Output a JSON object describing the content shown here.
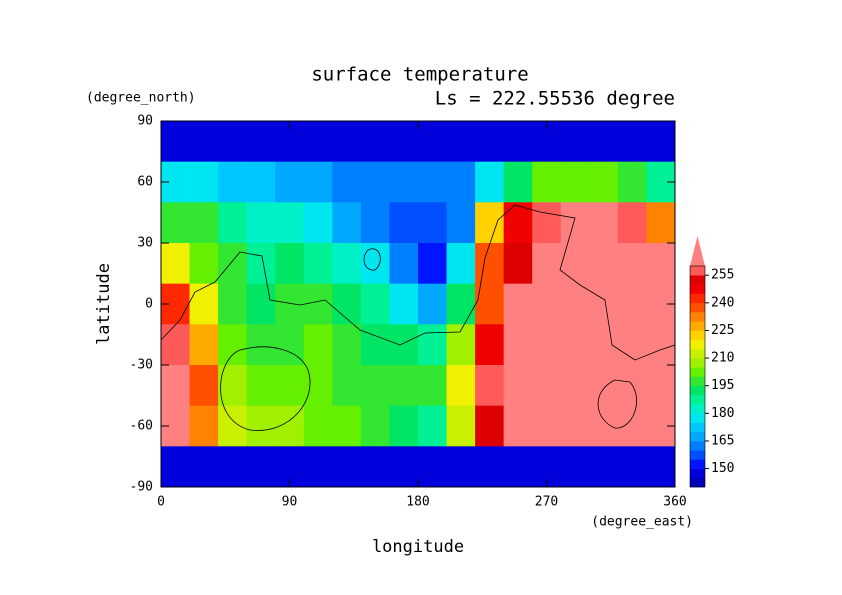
{
  "chart_data": {
    "type": "contour",
    "title": "surface temperature",
    "subtitle": "Ls = 222.55536 degree",
    "x_label": "longitude",
    "y_label": "latitude",
    "x_unit": "(degree_east)",
    "y_unit": "(degree_north)",
    "xlim": [
      0,
      360
    ],
    "ylim": [
      -90,
      90
    ],
    "xticks": [
      0,
      90,
      180,
      270,
      360
    ],
    "yticks": [
      -90,
      -60,
      -30,
      0,
      30,
      60,
      90
    ],
    "x": [
      10,
      30,
      50,
      70,
      90,
      110,
      130,
      150,
      170,
      190,
      210,
      230,
      250,
      270,
      290,
      310,
      330,
      350
    ],
    "y": [
      80,
      60,
      40,
      20,
      0,
      -20,
      -40,
      -60,
      -80
    ],
    "z": [
      [
        145,
        145,
        145,
        145,
        145,
        145,
        145,
        145,
        145,
        145,
        145,
        145,
        145,
        145,
        145,
        145,
        145,
        145
      ],
      [
        175,
        175,
        170,
        170,
        165,
        165,
        160,
        160,
        160,
        160,
        160,
        175,
        190,
        200,
        200,
        200,
        195,
        185
      ],
      [
        195,
        195,
        185,
        180,
        180,
        175,
        165,
        160,
        155,
        155,
        160,
        220,
        245,
        255,
        265,
        265,
        255,
        230
      ],
      [
        215,
        200,
        195,
        185,
        190,
        185,
        180,
        175,
        160,
        150,
        175,
        235,
        250,
        265,
        265,
        265,
        265,
        260
      ],
      [
        240,
        215,
        195,
        190,
        195,
        195,
        190,
        185,
        175,
        165,
        190,
        235,
        260,
        265,
        265,
        265,
        265,
        265
      ],
      [
        255,
        225,
        200,
        195,
        195,
        200,
        195,
        190,
        190,
        185,
        205,
        245,
        265,
        265,
        265,
        265,
        265,
        265
      ],
      [
        265,
        235,
        205,
        200,
        200,
        200,
        195,
        195,
        195,
        195,
        215,
        255,
        265,
        265,
        265,
        265,
        265,
        265
      ],
      [
        260,
        230,
        210,
        205,
        205,
        200,
        200,
        195,
        190,
        185,
        210,
        250,
        265,
        265,
        265,
        265,
        265,
        265
      ],
      [
        145,
        145,
        145,
        145,
        145,
        145,
        145,
        145,
        145,
        145,
        145,
        145,
        145,
        145,
        145,
        145,
        145,
        145
      ]
    ],
    "levels": [
      145,
      150,
      155,
      160,
      165,
      170,
      175,
      180,
      185,
      190,
      195,
      200,
      205,
      210,
      215,
      220,
      225,
      230,
      235,
      240,
      245,
      250,
      255,
      260
    ],
    "colors": [
      "#0000b4",
      "#0000dc",
      "#0014ff",
      "#0050ff",
      "#0080ff",
      "#00a8ff",
      "#00c8ff",
      "#00e6f0",
      "#00f0c8",
      "#00f096",
      "#00e664",
      "#32e632",
      "#64f000",
      "#a0f000",
      "#c8f000",
      "#f0f000",
      "#ffd200",
      "#ffaa00",
      "#ff8200",
      "#ff5000",
      "#ff2800",
      "#f00000",
      "#dc0000",
      "#ff5a5a",
      "#ff8080"
    ],
    "colorbar_ticks": [
      150,
      165,
      180,
      195,
      210,
      225,
      240,
      255
    ]
  }
}
